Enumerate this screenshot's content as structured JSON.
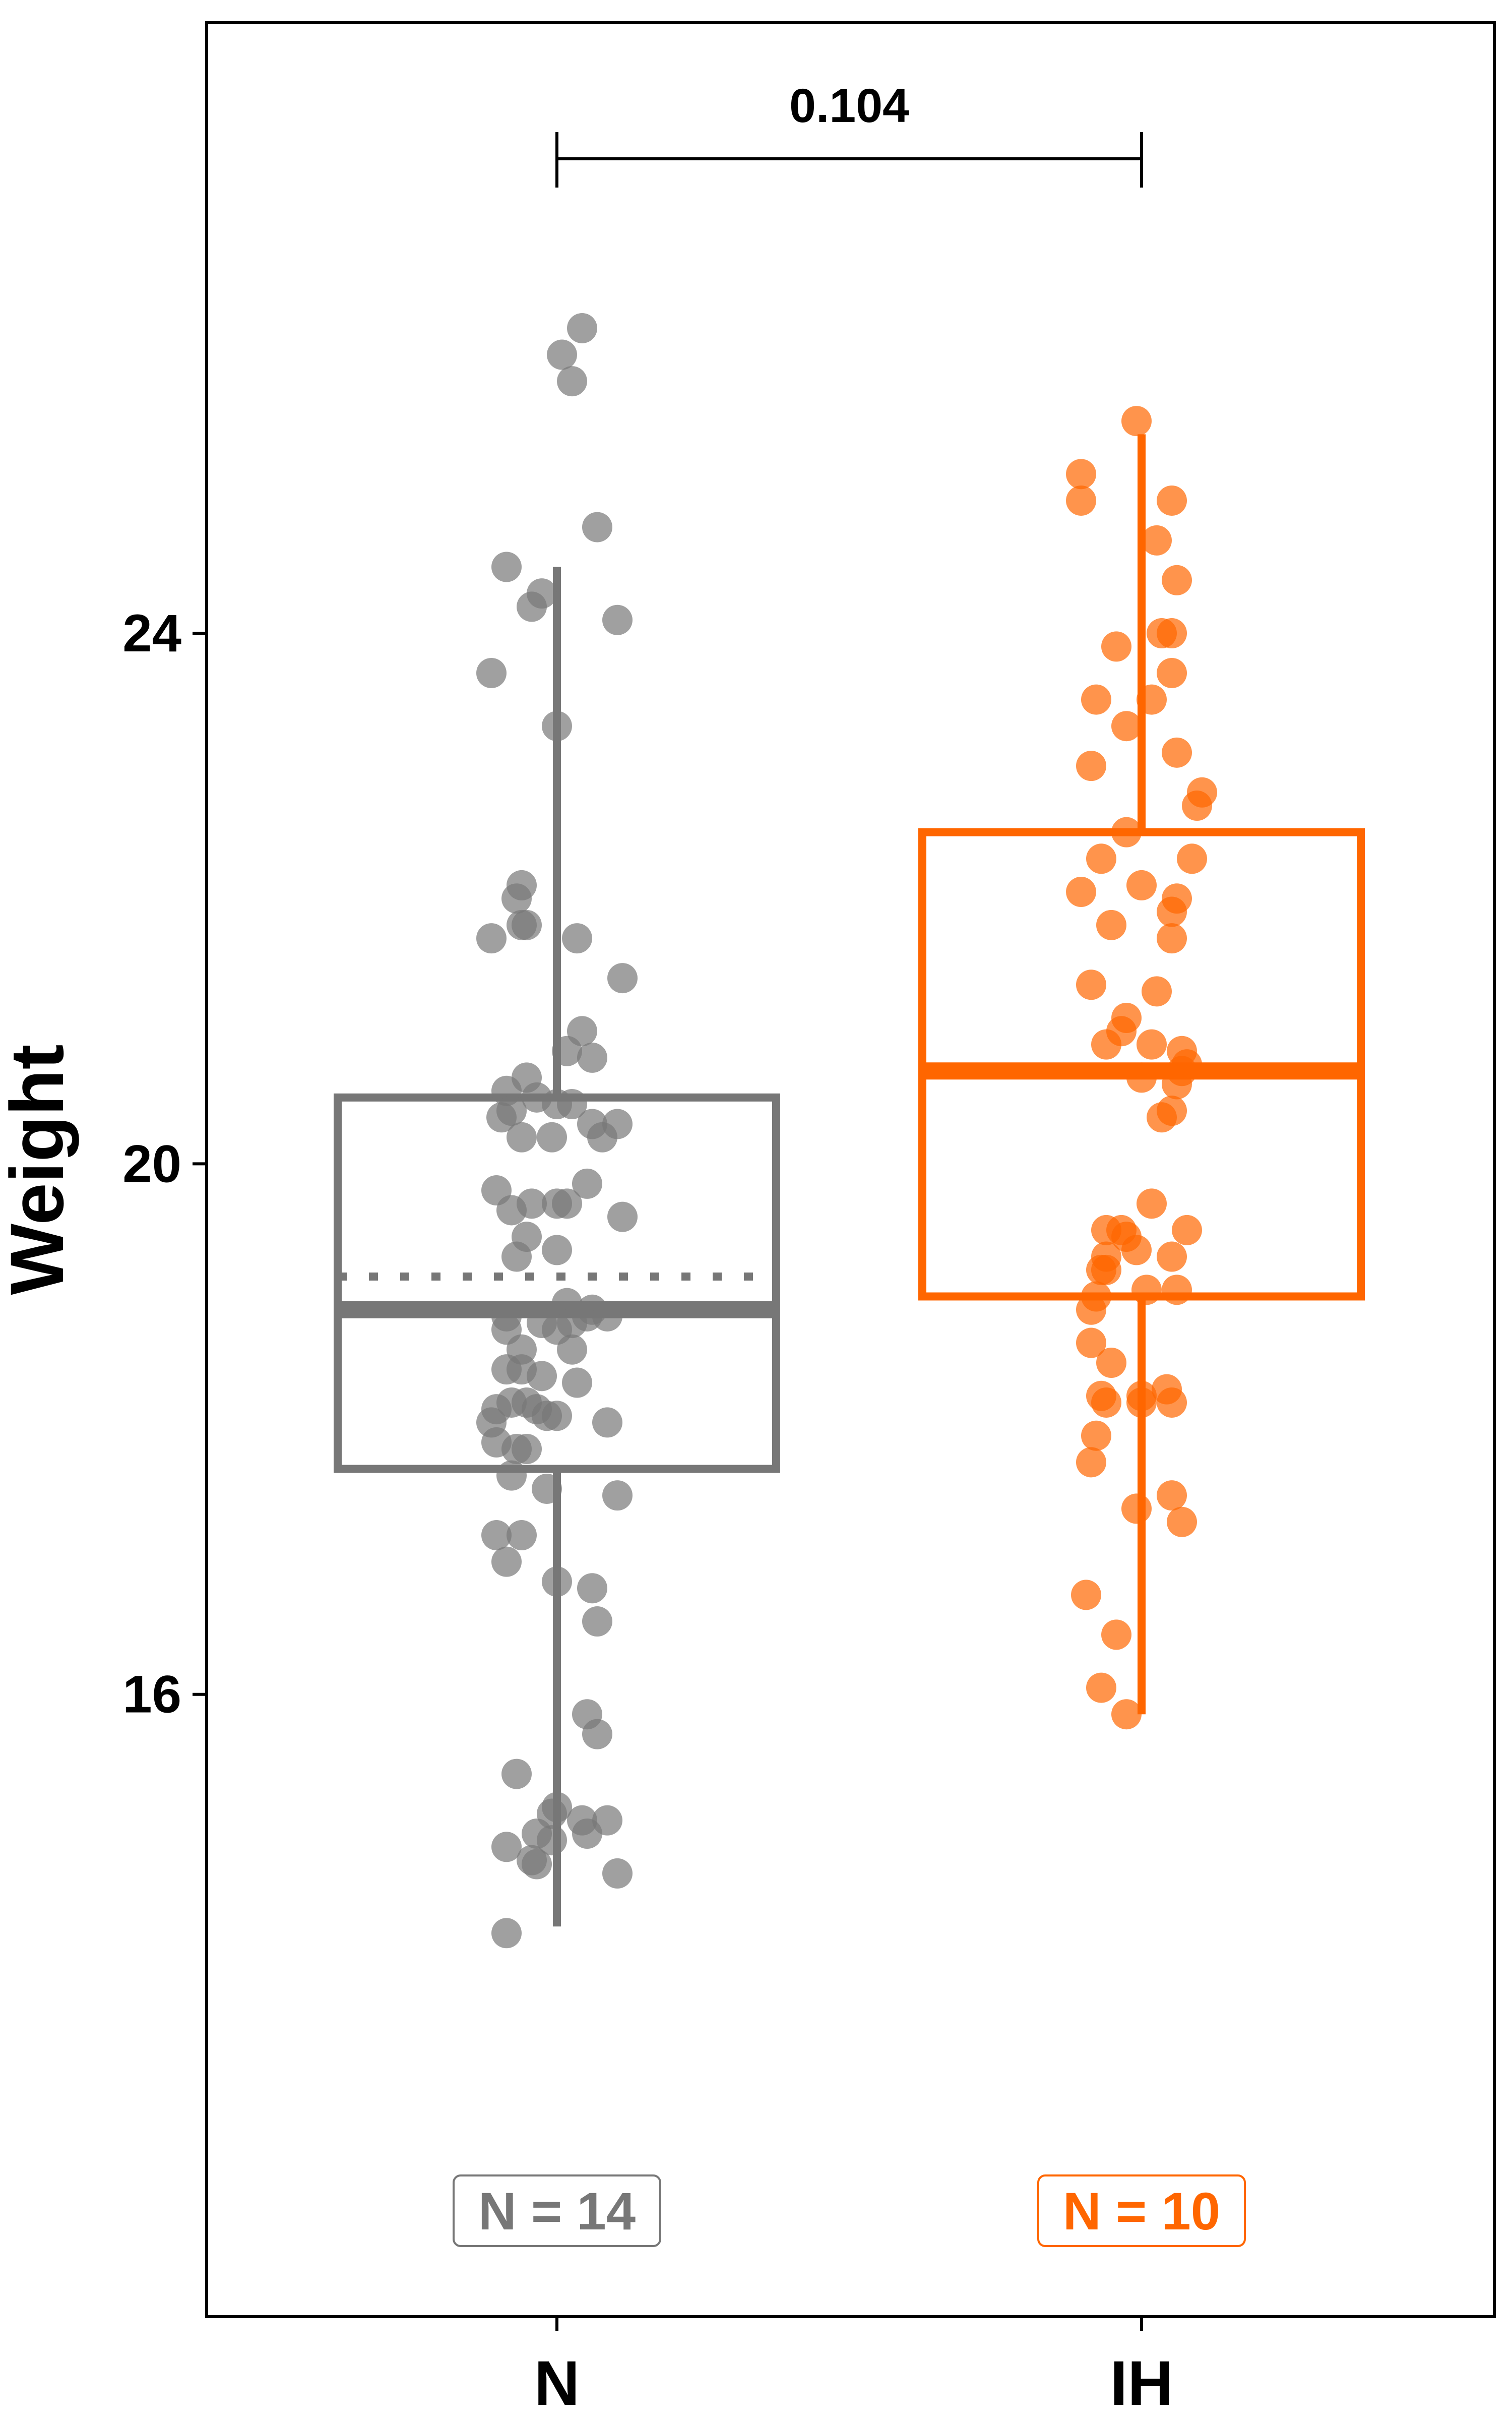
{
  "chart_data": {
    "type": "box",
    "ylabel": "Weight",
    "ylim": [
      13.0,
      27.9
    ],
    "yticks": [
      16,
      20,
      24
    ],
    "categories": [
      "N",
      "IH"
    ],
    "series": [
      {
        "name": "N",
        "color": "#777777",
        "count_label": "N = 14",
        "median": 18.9,
        "mean": 19.15,
        "q1": 17.7,
        "q3": 20.5,
        "whisker_low": 14.25,
        "whisker_high": 24.5,
        "points": [
          {
            "jit": 0.05,
            "y": 26.3
          },
          {
            "jit": 0.01,
            "y": 26.1
          },
          {
            "jit": 0.03,
            "y": 25.9
          },
          {
            "jit": 0.08,
            "y": 24.8
          },
          {
            "jit": -0.1,
            "y": 24.5
          },
          {
            "jit": -0.03,
            "y": 24.3
          },
          {
            "jit": -0.05,
            "y": 24.2
          },
          {
            "jit": 0.12,
            "y": 24.1
          },
          {
            "jit": -0.13,
            "y": 23.7
          },
          {
            "jit": 0.0,
            "y": 23.3
          },
          {
            "jit": -0.07,
            "y": 22.1
          },
          {
            "jit": -0.08,
            "y": 22.0
          },
          {
            "jit": -0.06,
            "y": 21.8
          },
          {
            "jit": -0.13,
            "y": 21.7
          },
          {
            "jit": 0.04,
            "y": 21.7
          },
          {
            "jit": -0.07,
            "y": 21.8
          },
          {
            "jit": 0.13,
            "y": 21.4
          },
          {
            "jit": 0.05,
            "y": 21.0
          },
          {
            "jit": 0.02,
            "y": 20.85
          },
          {
            "jit": 0.07,
            "y": 20.8
          },
          {
            "jit": -0.06,
            "y": 20.65
          },
          {
            "jit": -0.1,
            "y": 20.55
          },
          {
            "jit": -0.04,
            "y": 20.5
          },
          {
            "jit": 0.0,
            "y": 20.45
          },
          {
            "jit": 0.03,
            "y": 20.45
          },
          {
            "jit": -0.09,
            "y": 20.4
          },
          {
            "jit": -0.11,
            "y": 20.35
          },
          {
            "jit": 0.07,
            "y": 20.3
          },
          {
            "jit": 0.12,
            "y": 20.3
          },
          {
            "jit": -0.07,
            "y": 20.2
          },
          {
            "jit": -0.01,
            "y": 20.2
          },
          {
            "jit": 0.09,
            "y": 20.2
          },
          {
            "jit": 0.06,
            "y": 19.85
          },
          {
            "jit": -0.12,
            "y": 19.8
          },
          {
            "jit": -0.05,
            "y": 19.7
          },
          {
            "jit": 0.0,
            "y": 19.7
          },
          {
            "jit": 0.02,
            "y": 19.7
          },
          {
            "jit": -0.09,
            "y": 19.65
          },
          {
            "jit": 0.13,
            "y": 19.6
          },
          {
            "jit": -0.06,
            "y": 19.45
          },
          {
            "jit": 0.0,
            "y": 19.35
          },
          {
            "jit": -0.08,
            "y": 19.3
          },
          {
            "jit": 0.02,
            "y": 18.95
          },
          {
            "jit": 0.07,
            "y": 18.9
          },
          {
            "jit": 0.06,
            "y": 18.85
          },
          {
            "jit": -0.1,
            "y": 18.85
          },
          {
            "jit": -0.03,
            "y": 18.8
          },
          {
            "jit": 0.03,
            "y": 18.8
          },
          {
            "jit": 0.1,
            "y": 18.85
          },
          {
            "jit": -0.1,
            "y": 18.75
          },
          {
            "jit": 0.0,
            "y": 18.75
          },
          {
            "jit": -0.07,
            "y": 18.6
          },
          {
            "jit": 0.03,
            "y": 18.6
          },
          {
            "jit": -0.1,
            "y": 18.45
          },
          {
            "jit": -0.07,
            "y": 18.45
          },
          {
            "jit": -0.03,
            "y": 18.4
          },
          {
            "jit": 0.04,
            "y": 18.35
          },
          {
            "jit": -0.12,
            "y": 18.15
          },
          {
            "jit": -0.09,
            "y": 18.2
          },
          {
            "jit": -0.06,
            "y": 18.2
          },
          {
            "jit": -0.04,
            "y": 18.15
          },
          {
            "jit": -0.02,
            "y": 18.1
          },
          {
            "jit": 0.0,
            "y": 18.1
          },
          {
            "jit": -0.13,
            "y": 18.05
          },
          {
            "jit": 0.1,
            "y": 18.05
          },
          {
            "jit": -0.12,
            "y": 17.9
          },
          {
            "jit": -0.08,
            "y": 17.85
          },
          {
            "jit": -0.06,
            "y": 17.85
          },
          {
            "jit": -0.09,
            "y": 17.65
          },
          {
            "jit": -0.02,
            "y": 17.55
          },
          {
            "jit": 0.12,
            "y": 17.5
          },
          {
            "jit": -0.12,
            "y": 17.2
          },
          {
            "jit": -0.07,
            "y": 17.2
          },
          {
            "jit": -0.1,
            "y": 17.0
          },
          {
            "jit": 0.0,
            "y": 16.85
          },
          {
            "jit": 0.07,
            "y": 16.8
          },
          {
            "jit": 0.08,
            "y": 16.55
          },
          {
            "jit": 0.06,
            "y": 15.85
          },
          {
            "jit": 0.08,
            "y": 15.7
          },
          {
            "jit": -0.08,
            "y": 15.4
          },
          {
            "jit": 0.0,
            "y": 15.15
          },
          {
            "jit": -0.01,
            "y": 15.1
          },
          {
            "jit": 0.05,
            "y": 15.05
          },
          {
            "jit": 0.1,
            "y": 15.05
          },
          {
            "jit": -0.04,
            "y": 14.95
          },
          {
            "jit": 0.06,
            "y": 14.95
          },
          {
            "jit": -0.01,
            "y": 14.9
          },
          {
            "jit": -0.1,
            "y": 14.85
          },
          {
            "jit": -0.05,
            "y": 14.75
          },
          {
            "jit": -0.04,
            "y": 14.72
          },
          {
            "jit": 0.12,
            "y": 14.65
          },
          {
            "jit": -0.1,
            "y": 14.2
          }
        ]
      },
      {
        "name": "IH",
        "color": "#ff6600",
        "count_label": "N = 10",
        "median": 20.7,
        "mean": null,
        "q1": 19.0,
        "q3": 22.5,
        "whisker_low": 15.85,
        "whisker_high": 25.5,
        "points": [
          {
            "jit": -0.01,
            "y": 25.6
          },
          {
            "jit": -0.12,
            "y": 25.2
          },
          {
            "jit": -0.12,
            "y": 25.0
          },
          {
            "jit": 0.06,
            "y": 25.0
          },
          {
            "jit": 0.03,
            "y": 24.7
          },
          {
            "jit": 0.07,
            "y": 24.4
          },
          {
            "jit": 0.06,
            "y": 24.0
          },
          {
            "jit": 0.04,
            "y": 24.0
          },
          {
            "jit": -0.05,
            "y": 23.9
          },
          {
            "jit": 0.06,
            "y": 23.7
          },
          {
            "jit": -0.09,
            "y": 23.5
          },
          {
            "jit": 0.02,
            "y": 23.5
          },
          {
            "jit": -0.03,
            "y": 23.3
          },
          {
            "jit": 0.07,
            "y": 23.1
          },
          {
            "jit": -0.1,
            "y": 23.0
          },
          {
            "jit": 0.12,
            "y": 22.8
          },
          {
            "jit": 0.11,
            "y": 22.7
          },
          {
            "jit": -0.03,
            "y": 22.5
          },
          {
            "jit": -0.08,
            "y": 22.3
          },
          {
            "jit": 0.1,
            "y": 22.3
          },
          {
            "jit": 0.0,
            "y": 22.1
          },
          {
            "jit": -0.12,
            "y": 22.05
          },
          {
            "jit": 0.07,
            "y": 22.0
          },
          {
            "jit": 0.06,
            "y": 21.9
          },
          {
            "jit": -0.06,
            "y": 21.8
          },
          {
            "jit": 0.06,
            "y": 21.7
          },
          {
            "jit": -0.1,
            "y": 21.35
          },
          {
            "jit": 0.03,
            "y": 21.3
          },
          {
            "jit": -0.03,
            "y": 21.1
          },
          {
            "jit": -0.04,
            "y": 21.0
          },
          {
            "jit": -0.07,
            "y": 20.9
          },
          {
            "jit": 0.02,
            "y": 20.9
          },
          {
            "jit": 0.08,
            "y": 20.85
          },
          {
            "jit": 0.09,
            "y": 20.75
          },
          {
            "jit": 0.08,
            "y": 20.7
          },
          {
            "jit": 0.0,
            "y": 20.65
          },
          {
            "jit": 0.07,
            "y": 20.6
          },
          {
            "jit": 0.06,
            "y": 20.4
          },
          {
            "jit": 0.04,
            "y": 20.35
          },
          {
            "jit": 0.02,
            "y": 19.7
          },
          {
            "jit": -0.07,
            "y": 19.5
          },
          {
            "jit": -0.04,
            "y": 19.5
          },
          {
            "jit": -0.03,
            "y": 19.45
          },
          {
            "jit": 0.09,
            "y": 19.5
          },
          {
            "jit": -0.07,
            "y": 19.3
          },
          {
            "jit": -0.01,
            "y": 19.35
          },
          {
            "jit": 0.06,
            "y": 19.3
          },
          {
            "jit": -0.07,
            "y": 19.2
          },
          {
            "jit": -0.08,
            "y": 19.2
          },
          {
            "jit": -0.09,
            "y": 19.0
          },
          {
            "jit": 0.01,
            "y": 19.05
          },
          {
            "jit": 0.07,
            "y": 19.05
          },
          {
            "jit": -0.1,
            "y": 18.9
          },
          {
            "jit": -0.1,
            "y": 18.65
          },
          {
            "jit": -0.06,
            "y": 18.5
          },
          {
            "jit": 0.05,
            "y": 18.3
          },
          {
            "jit": -0.08,
            "y": 18.25
          },
          {
            "jit": 0.0,
            "y": 18.25
          },
          {
            "jit": -0.07,
            "y": 18.2
          },
          {
            "jit": 0.0,
            "y": 18.2
          },
          {
            "jit": 0.06,
            "y": 18.2
          },
          {
            "jit": -0.09,
            "y": 17.95
          },
          {
            "jit": -0.1,
            "y": 17.75
          },
          {
            "jit": 0.06,
            "y": 17.5
          },
          {
            "jit": -0.01,
            "y": 17.4
          },
          {
            "jit": 0.08,
            "y": 17.3
          },
          {
            "jit": -0.11,
            "y": 16.75
          },
          {
            "jit": -0.05,
            "y": 16.45
          },
          {
            "jit": -0.08,
            "y": 16.05
          },
          {
            "jit": -0.03,
            "y": 15.85
          }
        ]
      }
    ],
    "comparison": {
      "from": 0,
      "to": 1,
      "label": "0.104"
    }
  }
}
